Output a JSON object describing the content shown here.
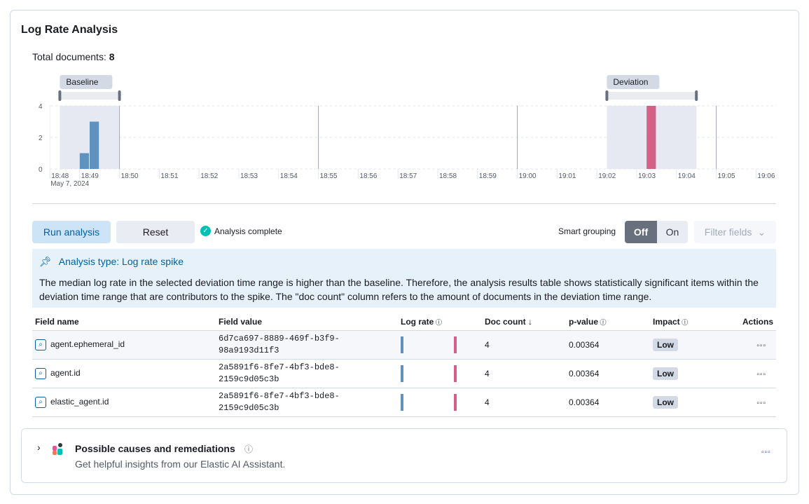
{
  "title": "Log Rate Analysis",
  "total_label": "Total documents:",
  "total_value": "8",
  "chart_data": {
    "type": "bar",
    "x_start": "18:48:15",
    "x_end": "19:06:30",
    "date_label": "May 7, 2024",
    "x_ticks": [
      "18:48",
      "18:49",
      "18:50",
      "18:51",
      "18:52",
      "18:53",
      "18:54",
      "18:55",
      "18:56",
      "18:57",
      "18:58",
      "18:59",
      "19:00",
      "19:01",
      "19:02",
      "19:03",
      "19:04",
      "19:05",
      "19:06"
    ],
    "y_ticks": [
      0,
      2,
      4
    ],
    "ylim": [
      0,
      4
    ],
    "bars": [
      {
        "t": "18:49:00",
        "v": 1,
        "color": "#6092c0"
      },
      {
        "t": "18:49:15",
        "v": 3,
        "color": "#6092c0"
      },
      {
        "t": "19:03:15",
        "v": 4,
        "color": "#d36086"
      }
    ],
    "bar_interval_seconds": 15,
    "baseline": {
      "label": "Baseline",
      "start": "18:48:30",
      "end": "18:50:00"
    },
    "deviation": {
      "label": "Deviation",
      "start": "19:02:15",
      "end": "19:04:30"
    },
    "grid": "dashed-horizontal"
  },
  "toolbar": {
    "run": "Run analysis",
    "reset": "Reset",
    "status": "Analysis complete",
    "smart_grouping": "Smart grouping",
    "off": "Off",
    "on": "On",
    "filter": "Filter fields"
  },
  "callout": {
    "title": "Analysis type: Log rate spike",
    "text": "The median log rate in the selected deviation time range is higher than the baseline. Therefore, the analysis results table shows statistically significant items within the deviation time range that are contributors to the spike. The \"doc count\" column refers to the amount of documents in the deviation time range."
  },
  "table": {
    "headers": [
      "Field name",
      "Field value",
      "Log rate",
      "Doc count",
      "p-value",
      "Impact",
      "Actions"
    ],
    "rows": [
      {
        "field": "agent.ephemeral_id",
        "value1": "6d7ca697-8889-469f-b3f9-",
        "value2": "98a9193d11f3",
        "doc": "4",
        "p": "0.00364",
        "impact": "Low"
      },
      {
        "field": "agent.id",
        "value1": "2a5891f6-8fe7-4bf3-bde8-",
        "value2": "2159c9d05c3b",
        "doc": "4",
        "p": "0.00364",
        "impact": "Low"
      },
      {
        "field": "elastic_agent.id",
        "value1": "2a5891f6-8fe7-4bf3-bde8-",
        "value2": "2159c9d05c3b",
        "doc": "4",
        "p": "0.00364",
        "impact": "Low"
      }
    ]
  },
  "assistant": {
    "title": "Possible causes and remediations",
    "subtitle": "Get helpful insights from our Elastic AI Assistant."
  }
}
